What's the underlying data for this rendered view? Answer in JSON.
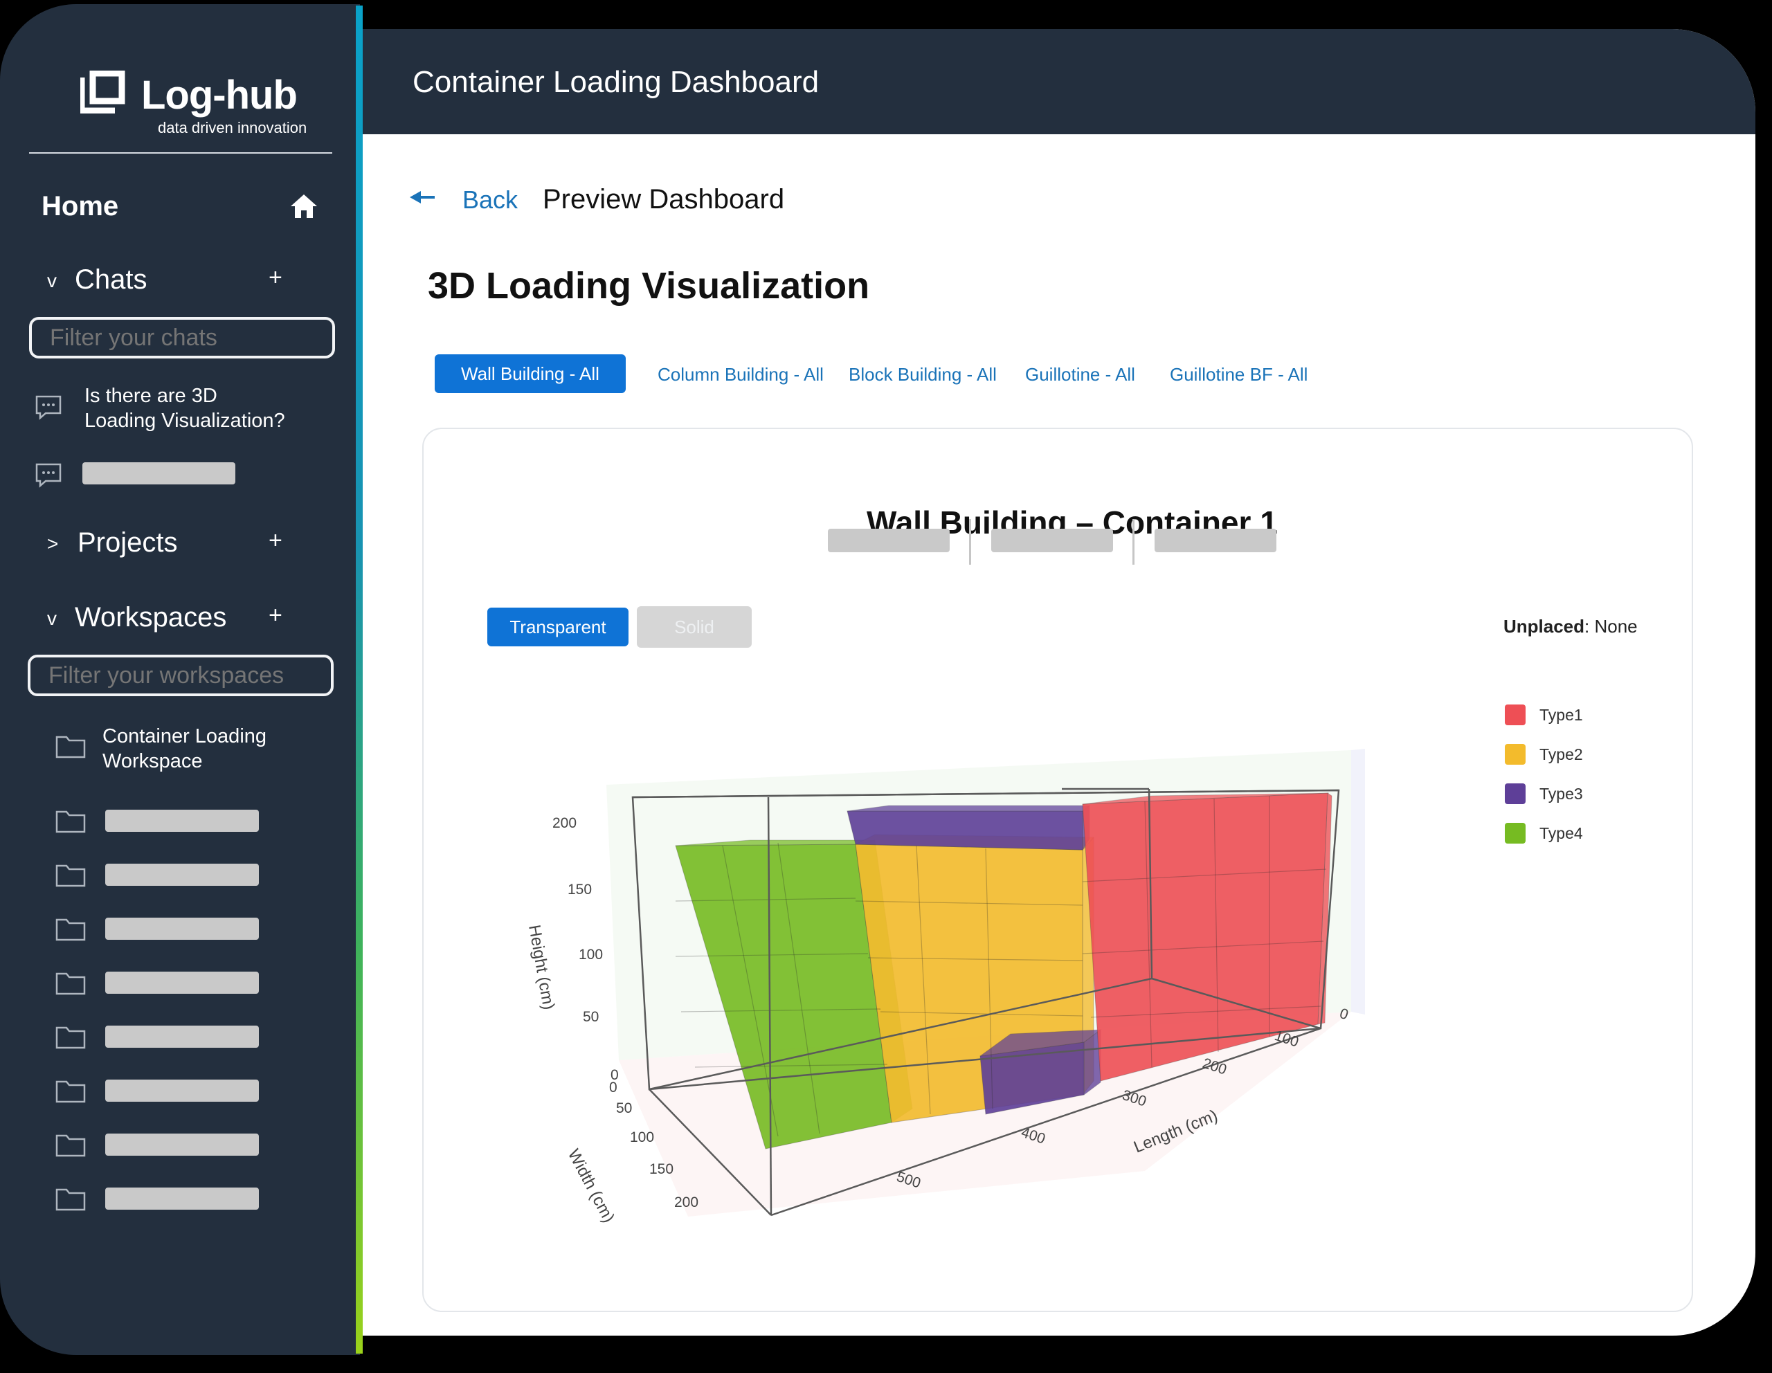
{
  "brand": {
    "name": "Log-hub",
    "tagline": "data driven innovation"
  },
  "sidebar": {
    "home_label": "Home",
    "chats": {
      "label": "Chats",
      "caret": "v",
      "plus": "+",
      "filter_placeholder": "Filter your chats",
      "items": [
        {
          "line1": "Is there are 3D",
          "line2": "Loading Visualization?"
        }
      ]
    },
    "projects": {
      "label": "Projects",
      "caret": ">",
      "plus": "+"
    },
    "workspaces": {
      "label": "Workspaces",
      "caret": "v",
      "plus": "+",
      "filter_placeholder": "Filter your workspaces",
      "items": [
        {
          "line1": "Container Loading",
          "line2": "Workspace"
        }
      ]
    }
  },
  "header": {
    "title": "Container Loading Dashboard"
  },
  "breadcrumb": {
    "back": "Back",
    "current": "Preview Dashboard"
  },
  "page": {
    "title": "3D Loading Visualization"
  },
  "tabs": [
    "Wall Building - All",
    "Column Building - All",
    "Block Building - All",
    "Guillotine - All",
    "Guillotine BF - All"
  ],
  "chart_card": {
    "title": "Wall Building – Container 1",
    "view_buttons": {
      "transparent": "Transparent",
      "solid": "Solid"
    },
    "unplaced": {
      "label": "Unplaced",
      "value": ": None"
    }
  },
  "colors": {
    "sidebar_bg": "#232f3e",
    "primary_button": "#0f73d6",
    "link": "#1a73b8",
    "type1": "#ee4f55",
    "type2": "#f3bb2c",
    "type3": "#5e3f98",
    "type4": "#76bb22"
  },
  "chart_data": {
    "type": "3d-box",
    "title": "Wall Building – Container 1",
    "axes": {
      "length": {
        "label": "Length (cm)",
        "ticks": [
          "0",
          "100",
          "200",
          "300",
          "400",
          "500"
        ]
      },
      "width": {
        "label": "Width (cm)",
        "ticks": [
          "0",
          "50",
          "100",
          "150",
          "200"
        ]
      },
      "height": {
        "label": "Height (cm)",
        "ticks": [
          "0",
          "50",
          "100",
          "150",
          "200"
        ]
      }
    },
    "legend": [
      {
        "name": "Type1",
        "color": "#ee4f55"
      },
      {
        "name": "Type2",
        "color": "#f3bb2c"
      },
      {
        "name": "Type3",
        "color": "#5e3f98"
      },
      {
        "name": "Type4",
        "color": "#76bb22"
      }
    ],
    "legend_position": "right",
    "blocks": [
      {
        "type": "Type1",
        "length_range": [
          0,
          170
        ],
        "height_range": [
          0,
          230
        ]
      },
      {
        "type": "Type2",
        "length_range": [
          170,
          370
        ],
        "height_range": [
          0,
          200
        ]
      },
      {
        "type": "Type3",
        "length_range": [
          170,
          330
        ],
        "height_range": [
          200,
          230
        ]
      },
      {
        "type": "Type3",
        "length_range": [
          170,
          270
        ],
        "height_range": [
          0,
          40
        ]
      },
      {
        "type": "Type4",
        "length_range": [
          370,
          500
        ],
        "height_range": [
          0,
          200
        ]
      }
    ]
  }
}
